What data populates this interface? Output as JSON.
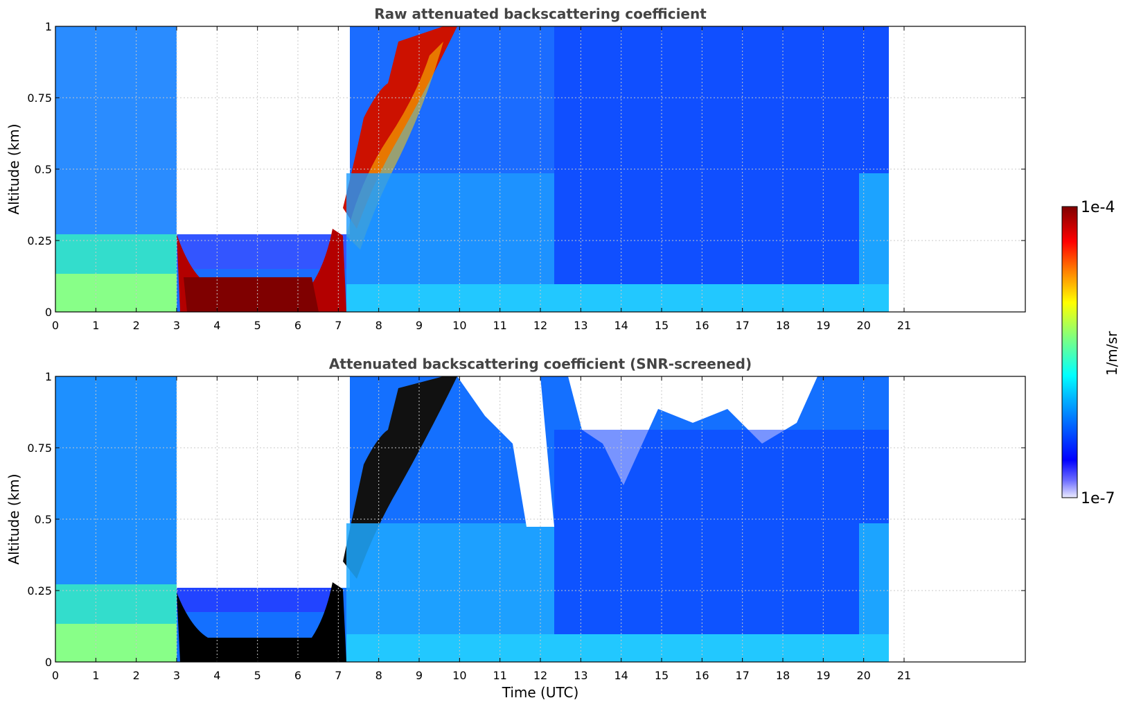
{
  "chart_data": [
    {
      "type": "heatmap",
      "title": "Raw attenuated backscattering coefficient",
      "xlabel": "",
      "ylabel": "Altitude (km)",
      "xlim": [
        0,
        24
      ],
      "ylim": [
        0,
        1
      ],
      "x_ticks": [
        "0",
        "1",
        "2",
        "3",
        "4",
        "5",
        "6",
        "7",
        "8",
        "9",
        "10",
        "11",
        "12",
        "13",
        "14",
        "15",
        "16",
        "17",
        "18",
        "19",
        "20",
        "21"
      ],
      "y_ticks": [
        "0",
        "0.25",
        "0.5",
        "0.75",
        "1"
      ],
      "data_end_hour": 20.6,
      "grid": true,
      "screened": false,
      "features": [
        {
          "name": "low-level-layer",
          "t": [
            3.2,
            7.2
          ],
          "alt_km": [
            0.0,
            0.2
          ],
          "log10_beta": -4.0
        },
        {
          "name": "rising-layer",
          "t": [
            7.2,
            10.0
          ],
          "alt_km": [
            0.2,
            1.0
          ],
          "log10_beta": -4.3
        },
        {
          "name": "background-boundary-layer",
          "t": [
            0,
            20.6
          ],
          "alt_km": [
            0,
            0.3
          ],
          "log10_beta": -5.8
        }
      ]
    },
    {
      "type": "heatmap",
      "title": "Attenuated backscattering coefficient (SNR-screened)",
      "xlabel": "Time (UTC)",
      "ylabel": "Altitude (km)",
      "xlim": [
        0,
        24
      ],
      "ylim": [
        0,
        1
      ],
      "x_ticks": [
        "0",
        "1",
        "2",
        "3",
        "4",
        "5",
        "6",
        "7",
        "8",
        "9",
        "10",
        "11",
        "12",
        "13",
        "14",
        "15",
        "16",
        "17",
        "18",
        "19",
        "20",
        "21"
      ],
      "y_ticks": [
        "0",
        "0.25",
        "0.5",
        "0.75",
        "1"
      ],
      "data_end_hour": 20.6,
      "grid": true,
      "screened": true
    }
  ],
  "colorbar": {
    "label": "1/m/sr",
    "max_label": "1e-4",
    "min_label": "1e-7",
    "colormap": "jet-with-white-low",
    "colors": [
      "#ececff",
      "#0000ff",
      "#00aaff",
      "#00ffff",
      "#7fff7f",
      "#ffff00",
      "#ff7f00",
      "#ff0000",
      "#7f0000"
    ]
  },
  "colors": {
    "title": "#444444",
    "grid": "#c8c8c8",
    "saturated": "#000000"
  }
}
